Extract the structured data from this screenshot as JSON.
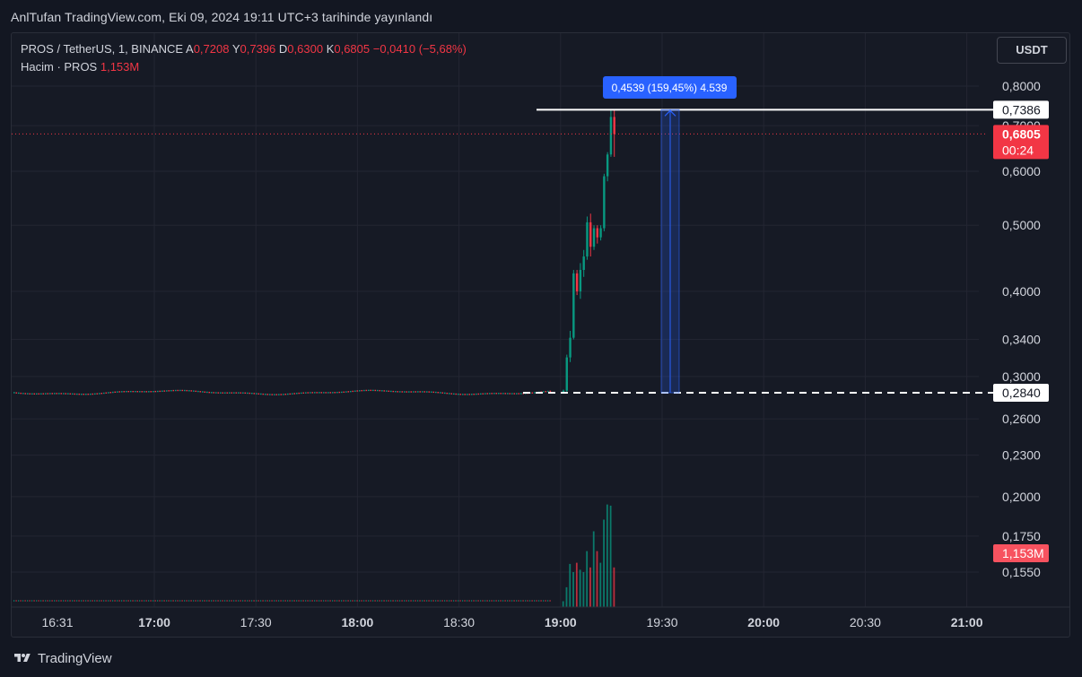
{
  "header": {
    "title": "AnlTufan TradingView.com, Eki 09, 2024 19:11 UTC+3 tarihinde yayınlandı"
  },
  "legend": {
    "symbol": "PROS / TetherUS, 1, BINANCE",
    "open_label": "A",
    "open": "0,7208",
    "high_label": "Y",
    "high": "0,7396",
    "low_label": "D",
    "low": "0,6300",
    "close_label": "K",
    "close": "0,6805",
    "change": "−0,0410 (−5,68%)",
    "volume_label": "Hacim · PROS",
    "volume": "1,153M"
  },
  "currency_button": "USDT",
  "footer": {
    "brand": "TradingView"
  },
  "colors": {
    "up": "#089981",
    "down": "#f23645",
    "measure": "#2962ff",
    "background": "#131722"
  },
  "chart_data": {
    "type": "candlestick",
    "scale": "log",
    "y_ticks": [
      "0,8000",
      "0,7000",
      "0,6000",
      "0,5000",
      "0,4000",
      "0,3400",
      "0,3000",
      "0,2600",
      "0,2300",
      "0,2000",
      "0,1750",
      "0,1550"
    ],
    "x_ticks": [
      "16:31",
      "17:00",
      "17:30",
      "18:00",
      "18:30",
      "19:00",
      "19:30",
      "20:00",
      "20:30",
      "21:00"
    ],
    "price_labels": {
      "high_line": "0,7386",
      "last": "0,6805",
      "countdown": "00:24",
      "low_line": "0,2840",
      "volume": "1,153M"
    },
    "measure_label": "0,4539 (159,45%) 4.539",
    "candles_19h": [
      {
        "o": 0.284,
        "h": 0.287,
        "l": 0.283,
        "c": 0.286
      },
      {
        "o": 0.286,
        "h": 0.323,
        "l": 0.285,
        "c": 0.32
      },
      {
        "o": 0.32,
        "h": 0.35,
        "l": 0.315,
        "c": 0.342
      },
      {
        "o": 0.342,
        "h": 0.43,
        "l": 0.34,
        "c": 0.425
      },
      {
        "o": 0.425,
        "h": 0.43,
        "l": 0.395,
        "c": 0.4
      },
      {
        "o": 0.4,
        "h": 0.44,
        "l": 0.39,
        "c": 0.43
      },
      {
        "o": 0.43,
        "h": 0.46,
        "l": 0.42,
        "c": 0.45
      },
      {
        "o": 0.45,
        "h": 0.515,
        "l": 0.445,
        "c": 0.505
      },
      {
        "o": 0.505,
        "h": 0.52,
        "l": 0.45,
        "c": 0.465
      },
      {
        "o": 0.465,
        "h": 0.5,
        "l": 0.46,
        "c": 0.495
      },
      {
        "o": 0.495,
        "h": 0.5,
        "l": 0.47,
        "c": 0.48
      },
      {
        "o": 0.48,
        "h": 0.5,
        "l": 0.475,
        "c": 0.495
      },
      {
        "o": 0.495,
        "h": 0.595,
        "l": 0.49,
        "c": 0.59
      },
      {
        "o": 0.59,
        "h": 0.64,
        "l": 0.58,
        "c": 0.635
      },
      {
        "o": 0.635,
        "h": 0.7396,
        "l": 0.63,
        "c": 0.7208
      },
      {
        "o": 0.7208,
        "h": 0.7396,
        "l": 0.63,
        "c": 0.6805
      }
    ],
    "volumes_19h": [
      0.05,
      0.17,
      0.37,
      0.3,
      0.38,
      0.32,
      0.3,
      0.48,
      0.34,
      0.65,
      0.48,
      0.38,
      0.75,
      0.88,
      0.87,
      0.34
    ]
  }
}
